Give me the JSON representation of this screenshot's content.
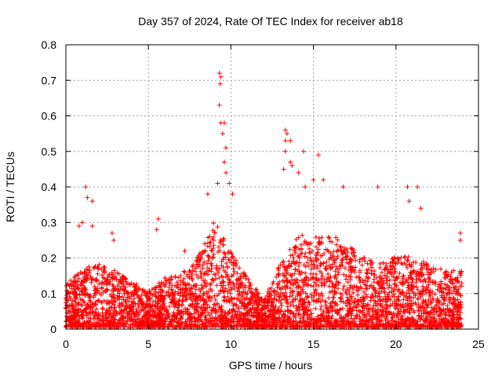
{
  "chart_data": {
    "type": "scatter",
    "title": "Day 357 of 2024, Rate Of TEC Index for receiver ab18",
    "xlabel": "GPS time / hours",
    "ylabel": "ROTI / TECUs",
    "xlim": [
      0,
      25
    ],
    "ylim": [
      0,
      0.8
    ],
    "xticks": [
      0,
      5,
      10,
      15,
      20,
      25
    ],
    "yticks": [
      0,
      0.1,
      0.2,
      0.3,
      0.4,
      0.5,
      0.6,
      0.7,
      0.8
    ],
    "xtick_labels": [
      "0",
      "5",
      "10",
      "15",
      "20",
      "25"
    ],
    "ytick_labels": [
      "0",
      "0.1",
      "0.2",
      "0.3",
      "0.4",
      "0.5",
      "0.6",
      "0.7",
      "0.8"
    ],
    "grid": true,
    "marker": "+",
    "color": "#ff0000",
    "x_range_data": [
      0,
      24
    ],
    "envelope": {
      "hours": [
        0,
        1,
        2,
        3,
        4,
        5,
        6,
        7,
        8,
        9,
        10,
        11,
        12,
        13,
        14,
        15,
        16,
        17,
        18,
        19,
        20,
        21,
        22,
        23,
        24
      ],
      "typical_max": [
        0.12,
        0.17,
        0.18,
        0.16,
        0.13,
        0.1,
        0.14,
        0.15,
        0.2,
        0.3,
        0.22,
        0.14,
        0.08,
        0.18,
        0.26,
        0.26,
        0.26,
        0.24,
        0.2,
        0.18,
        0.2,
        0.2,
        0.18,
        0.16,
        0.16
      ]
    },
    "notable_points": [
      {
        "x": 1.2,
        "y": 0.4
      },
      {
        "x": 1.3,
        "y": 0.37
      },
      {
        "x": 1.6,
        "y": 0.36
      },
      {
        "x": 0.8,
        "y": 0.29
      },
      {
        "x": 1.0,
        "y": 0.3
      },
      {
        "x": 1.6,
        "y": 0.29
      },
      {
        "x": 2.8,
        "y": 0.27
      },
      {
        "x": 2.9,
        "y": 0.25
      },
      {
        "x": 5.6,
        "y": 0.31
      },
      {
        "x": 5.5,
        "y": 0.28
      },
      {
        "x": 7.2,
        "y": 0.22
      },
      {
        "x": 8.6,
        "y": 0.38
      },
      {
        "x": 9.3,
        "y": 0.72
      },
      {
        "x": 9.4,
        "y": 0.71
      },
      {
        "x": 9.35,
        "y": 0.69
      },
      {
        "x": 9.3,
        "y": 0.63
      },
      {
        "x": 9.4,
        "y": 0.58
      },
      {
        "x": 9.6,
        "y": 0.58
      },
      {
        "x": 9.5,
        "y": 0.55
      },
      {
        "x": 9.7,
        "y": 0.51
      },
      {
        "x": 9.6,
        "y": 0.47
      },
      {
        "x": 9.7,
        "y": 0.44
      },
      {
        "x": 9.2,
        "y": 0.41
      },
      {
        "x": 9.9,
        "y": 0.41
      },
      {
        "x": 10.1,
        "y": 0.38
      },
      {
        "x": 13.3,
        "y": 0.56
      },
      {
        "x": 13.4,
        "y": 0.55
      },
      {
        "x": 13.3,
        "y": 0.53
      },
      {
        "x": 13.6,
        "y": 0.53
      },
      {
        "x": 13.3,
        "y": 0.5
      },
      {
        "x": 13.6,
        "y": 0.47
      },
      {
        "x": 13.7,
        "y": 0.46
      },
      {
        "x": 13.2,
        "y": 0.45
      },
      {
        "x": 14.1,
        "y": 0.44
      },
      {
        "x": 14.4,
        "y": 0.5
      },
      {
        "x": 15.3,
        "y": 0.49
      },
      {
        "x": 14.5,
        "y": 0.4
      },
      {
        "x": 15.0,
        "y": 0.42
      },
      {
        "x": 15.6,
        "y": 0.42
      },
      {
        "x": 16.8,
        "y": 0.4
      },
      {
        "x": 18.9,
        "y": 0.4
      },
      {
        "x": 20.7,
        "y": 0.4
      },
      {
        "x": 21.3,
        "y": 0.4
      },
      {
        "x": 20.8,
        "y": 0.36
      },
      {
        "x": 21.5,
        "y": 0.34
      },
      {
        "x": 23.9,
        "y": 0.27
      },
      {
        "x": 23.9,
        "y": 0.25
      }
    ]
  }
}
